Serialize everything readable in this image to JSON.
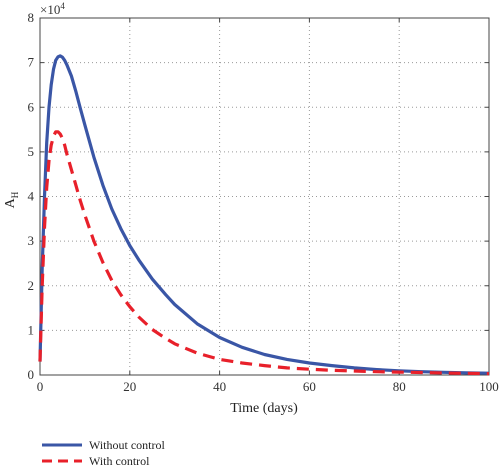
{
  "chart_data": {
    "type": "line",
    "title": "",
    "xlabel": "Time (days)",
    "ylabel": "A",
    "ylabel_subscript": "H",
    "y_multiplier": "×10",
    "y_multiplier_exponent": "4",
    "xlim": [
      0,
      100
    ],
    "ylim": [
      0,
      8
    ],
    "y_scale_factor": 10000,
    "xticks": [
      "0",
      "20",
      "40",
      "60",
      "80",
      "100"
    ],
    "yticks": [
      "0",
      "1",
      "2",
      "3",
      "4",
      "5",
      "6",
      "7",
      "8"
    ],
    "grid": "dotted",
    "legend_position": "bottom-left, below plot",
    "series": [
      {
        "name": "Without control",
        "color": "#3a56a6",
        "style": "solid",
        "x": [
          0,
          0.5,
          1,
          1.5,
          2,
          2.5,
          3,
          3.5,
          4,
          4.5,
          5,
          5.5,
          6,
          7,
          8,
          9,
          10,
          12,
          14,
          16,
          18,
          20,
          22,
          25,
          28,
          30,
          35,
          40,
          45,
          50,
          55,
          60,
          65,
          70,
          75,
          80,
          85,
          90,
          95,
          100
        ],
        "values": [
          0.3,
          2.4,
          4.0,
          5.2,
          6.0,
          6.5,
          6.85,
          7.05,
          7.13,
          7.15,
          7.12,
          7.05,
          6.95,
          6.7,
          6.35,
          5.97,
          5.6,
          4.88,
          4.25,
          3.72,
          3.28,
          2.9,
          2.58,
          2.15,
          1.8,
          1.58,
          1.15,
          0.84,
          0.62,
          0.46,
          0.35,
          0.27,
          0.21,
          0.16,
          0.12,
          0.095,
          0.075,
          0.06,
          0.048,
          0.04
        ]
      },
      {
        "name": "With control",
        "color": "#e8202a",
        "style": "dashed",
        "x": [
          0,
          0.5,
          1,
          1.5,
          2,
          2.5,
          3,
          3.5,
          4,
          4.5,
          5,
          5.5,
          6,
          7,
          8,
          9,
          10,
          12,
          14,
          16,
          18,
          20,
          22,
          25,
          28,
          30,
          35,
          40,
          45,
          50,
          55,
          60,
          65,
          70,
          75,
          80,
          85,
          90,
          95,
          100
        ],
        "values": [
          0.3,
          2.0,
          3.3,
          4.2,
          4.8,
          5.15,
          5.35,
          5.45,
          5.45,
          5.4,
          5.3,
          5.15,
          4.95,
          4.6,
          4.25,
          3.9,
          3.58,
          3.0,
          2.52,
          2.12,
          1.8,
          1.53,
          1.3,
          1.02,
          0.82,
          0.7,
          0.49,
          0.35,
          0.27,
          0.21,
          0.16,
          0.13,
          0.105,
          0.09,
          0.075,
          0.065,
          0.055,
          0.045,
          0.038,
          0.03
        ]
      }
    ]
  }
}
